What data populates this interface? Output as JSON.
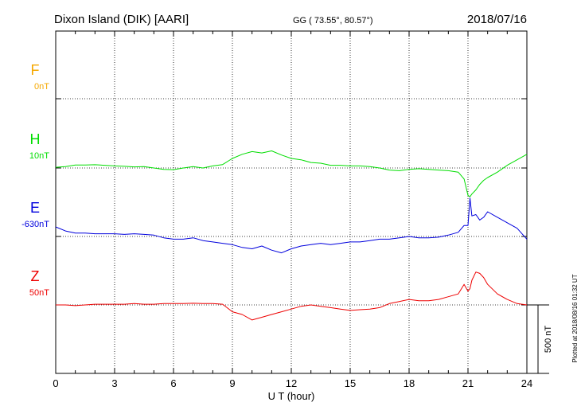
{
  "header": {
    "station": "Dixon Island (DIK)  [AARI]",
    "coords": "GG ( 73.55°,  80.57°)",
    "date": "2018/07/16"
  },
  "footer": {
    "plotted": "Plotted at 2018/08/16 01:32 UT",
    "scale_label": "500 nT"
  },
  "chart_data": {
    "type": "line",
    "xlabel": "U T (hour)",
    "ylabel": "",
    "xlim": [
      0,
      24
    ],
    "xticks": [
      0,
      3,
      6,
      9,
      12,
      15,
      18,
      21,
      24
    ],
    "grid": true,
    "scale_nT": 500,
    "series": [
      {
        "name": "F",
        "baseline_label": "0nT",
        "color": "#f5a800",
        "x": [],
        "y": []
      },
      {
        "name": "H",
        "baseline_label": "10nT",
        "color": "#00dd00",
        "x": [
          0,
          0.5,
          1,
          1.5,
          2,
          2.5,
          3,
          3.5,
          4,
          4.5,
          5,
          5.5,
          6,
          6.5,
          7,
          7.5,
          8,
          8.5,
          9,
          9.5,
          10,
          10.5,
          11,
          11.5,
          12,
          12.5,
          13,
          13.5,
          14,
          14.5,
          15,
          15.5,
          16,
          16.5,
          17,
          17.5,
          18,
          18.5,
          19,
          19.5,
          20,
          20.5,
          20.8,
          21,
          21.1,
          21.2,
          21.4,
          21.6,
          21.8,
          22,
          22.5,
          23,
          23.5,
          24
        ],
        "y": [
          5,
          10,
          22,
          22,
          24,
          20,
          15,
          12,
          8,
          10,
          0,
          -10,
          -12,
          0,
          10,
          0,
          15,
          25,
          70,
          100,
          120,
          110,
          125,
          95,
          70,
          60,
          40,
          35,
          20,
          20,
          15,
          15,
          10,
          0,
          -15,
          -20,
          -10,
          -5,
          -10,
          -15,
          -20,
          -30,
          -80,
          -200,
          -210,
          -190,
          -160,
          -120,
          -90,
          -70,
          -30,
          20,
          60,
          100
        ]
      },
      {
        "name": "E",
        "baseline_label": "-630nT",
        "color": "#0000dd",
        "x": [
          0,
          0.5,
          1,
          1.5,
          2,
          2.5,
          3,
          3.5,
          4,
          4.5,
          5,
          5.5,
          6,
          6.5,
          7,
          7.5,
          8,
          8.5,
          9,
          9.5,
          10,
          10.5,
          11,
          11.5,
          12,
          12.5,
          13,
          13.5,
          14,
          14.5,
          15,
          15.5,
          16,
          16.5,
          17,
          17.5,
          18,
          18.5,
          19,
          19.5,
          20,
          20.5,
          20.8,
          21,
          21.1,
          21.2,
          21.4,
          21.6,
          21.8,
          22,
          22.5,
          23,
          23.5,
          24
        ],
        "y": [
          70,
          40,
          25,
          25,
          20,
          20,
          20,
          15,
          20,
          15,
          10,
          -10,
          -20,
          -20,
          -10,
          -30,
          -40,
          -50,
          -60,
          -80,
          -90,
          -70,
          -100,
          -120,
          -90,
          -70,
          -60,
          -50,
          -60,
          -50,
          -40,
          -40,
          -30,
          -20,
          -20,
          -10,
          0,
          -10,
          -10,
          -5,
          10,
          30,
          80,
          80,
          280,
          150,
          160,
          120,
          140,
          180,
          140,
          100,
          60,
          -20
        ]
      },
      {
        "name": "Z",
        "baseline_label": "50nT",
        "color": "#ee0000",
        "x": [
          0,
          0.5,
          1,
          1.5,
          2,
          2.5,
          3,
          3.5,
          4,
          4.5,
          5,
          5.5,
          6,
          6.5,
          7,
          7.5,
          8,
          8.5,
          9,
          9.5,
          10,
          10.5,
          11,
          11.5,
          12,
          12.5,
          13,
          13.5,
          14,
          14.5,
          15,
          15.5,
          16,
          16.5,
          17,
          17.5,
          18,
          18.5,
          19,
          19.5,
          20,
          20.5,
          20.8,
          21,
          21.1,
          21.2,
          21.4,
          21.6,
          21.8,
          22,
          22.5,
          23,
          23.5,
          24
        ],
        "y": [
          0,
          0,
          -5,
          0,
          5,
          5,
          5,
          5,
          10,
          5,
          5,
          10,
          10,
          10,
          12,
          10,
          10,
          5,
          -50,
          -70,
          -110,
          -90,
          -70,
          -50,
          -30,
          -10,
          0,
          -10,
          -20,
          -30,
          -40,
          -35,
          -30,
          -20,
          10,
          25,
          40,
          30,
          30,
          40,
          60,
          80,
          150,
          100,
          120,
          180,
          240,
          230,
          200,
          150,
          80,
          40,
          10,
          0
        ]
      }
    ]
  }
}
